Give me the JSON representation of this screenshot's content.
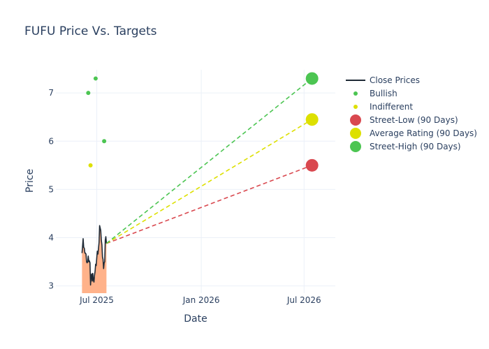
{
  "chart_data": {
    "type": "line",
    "title": "FUFU Price Vs. Targets",
    "xlabel": "Date",
    "ylabel": "Price",
    "xlim": [
      "2025-04-20",
      "2026-08-25"
    ],
    "ylim": [
      2.85,
      7.48
    ],
    "x_ticks": [
      {
        "date": "2025-07-01",
        "label": "Jul 2025"
      },
      {
        "date": "2026-01-01",
        "label": "Jan 2026"
      },
      {
        "date": "2026-07-01",
        "label": "Jul 2026"
      }
    ],
    "y_ticks": [
      3,
      4,
      5,
      6,
      7
    ],
    "grid": true,
    "legend_position": "right",
    "close_prices": {
      "name": "Close Prices",
      "color": "#1f2a36",
      "fill_color": "#ffb28a",
      "points": [
        [
          "2025-06-05",
          3.68
        ],
        [
          "2025-06-06",
          3.82
        ],
        [
          "2025-06-07",
          3.98
        ],
        [
          "2025-06-08",
          3.8
        ],
        [
          "2025-06-09",
          3.78
        ],
        [
          "2025-06-10",
          3.68
        ],
        [
          "2025-06-11",
          3.68
        ],
        [
          "2025-06-12",
          3.66
        ],
        [
          "2025-06-13",
          3.5
        ],
        [
          "2025-06-14",
          3.48
        ],
        [
          "2025-06-15",
          3.5
        ],
        [
          "2025-06-16",
          3.62
        ],
        [
          "2025-06-17",
          3.5
        ],
        [
          "2025-06-18",
          3.52
        ],
        [
          "2025-06-19",
          3.48
        ],
        [
          "2025-06-20",
          3.02
        ],
        [
          "2025-06-21",
          3.2
        ],
        [
          "2025-06-22",
          3.25
        ],
        [
          "2025-06-23",
          3.1
        ],
        [
          "2025-06-24",
          3.26
        ],
        [
          "2025-06-25",
          3.12
        ],
        [
          "2025-06-26",
          3.08
        ],
        [
          "2025-06-27",
          3.22
        ],
        [
          "2025-06-28",
          3.3
        ],
        [
          "2025-06-29",
          3.45
        ],
        [
          "2025-06-30",
          3.42
        ],
        [
          "2025-07-01",
          3.58
        ],
        [
          "2025-07-02",
          3.72
        ],
        [
          "2025-07-03",
          3.66
        ],
        [
          "2025-07-04",
          3.78
        ],
        [
          "2025-07-05",
          3.9
        ],
        [
          "2025-07-06",
          4.25
        ],
        [
          "2025-07-07",
          4.2
        ],
        [
          "2025-07-08",
          4.15
        ],
        [
          "2025-07-09",
          3.95
        ],
        [
          "2025-07-10",
          3.85
        ],
        [
          "2025-07-11",
          3.6
        ],
        [
          "2025-07-12",
          3.55
        ],
        [
          "2025-07-13",
          3.36
        ],
        [
          "2025-07-14",
          3.48
        ],
        [
          "2025-07-15",
          3.5
        ],
        [
          "2025-07-16",
          3.95
        ],
        [
          "2025-07-17",
          4.02
        ],
        [
          "2025-07-18",
          3.88
        ]
      ]
    },
    "bullish": {
      "name": "Bullish",
      "color": "#4cc552",
      "points": [
        [
          "2025-06-16",
          7.0
        ],
        [
          "2025-06-29",
          7.3
        ],
        [
          "2025-07-14",
          6.0
        ]
      ]
    },
    "indifferent": {
      "name": "Indifferent",
      "color": "#dde000",
      "points": [
        [
          "2025-06-20",
          5.5
        ]
      ]
    },
    "targets": {
      "start": [
        "2025-07-18",
        3.88
      ],
      "end_date": "2026-07-15",
      "series": [
        {
          "name": "Street-Low (90 Days)",
          "color": "#d9484f",
          "value": 5.5
        },
        {
          "name": "Average Rating (90 Days)",
          "color": "#dde000",
          "value": 6.45
        },
        {
          "name": "Street-High (90 Days)",
          "color": "#4cc552",
          "value": 7.3
        }
      ]
    }
  }
}
